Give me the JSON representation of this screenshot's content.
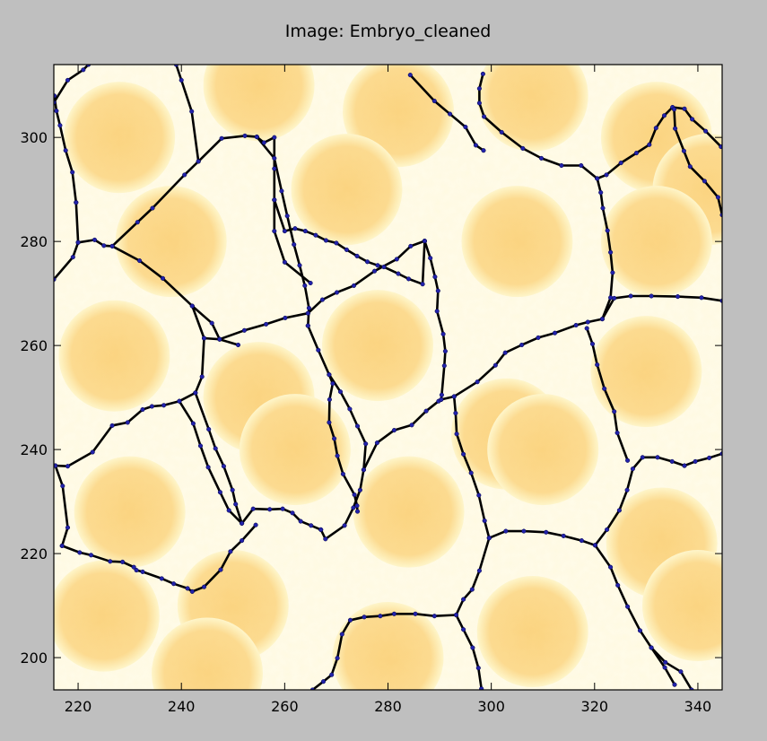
{
  "figure": {
    "title": "Image: Embryo_cleaned"
  },
  "chart_data": {
    "type": "image",
    "title": "Image: Embryo_cleaned",
    "xlabel": "",
    "ylabel": "",
    "xlim": [
      215.3,
      344.7
    ],
    "ylim": [
      193.8,
      314.0
    ],
    "xticks": [
      220,
      240,
      260,
      280,
      300,
      320,
      340
    ],
    "yticks": [
      200,
      220,
      240,
      260,
      280,
      300
    ],
    "x_tick_labels": [
      "220",
      "240",
      "260",
      "280",
      "300",
      "320",
      "340"
    ],
    "y_tick_labels": [
      "200",
      "220",
      "240",
      "260",
      "280",
      "300"
    ],
    "grid": false,
    "colors": {
      "background": "#bfbfbf",
      "cell_fill": "#fdd68a",
      "cell_edge_glow": "#fffef0",
      "membrane": "#000000",
      "vertex_marker": "#2222aa"
    },
    "membrane_segments": [
      [
        [
          215.3,
          306.7
        ],
        [
          218,
          311
        ],
        [
          221,
          313
        ],
        [
          222,
          314
        ]
      ],
      [
        [
          215.3,
          272.7
        ],
        [
          219,
          277
        ],
        [
          220,
          279.8
        ]
      ],
      [
        [
          219.6,
          287.5
        ],
        [
          218.9,
          293.3
        ],
        [
          217.6,
          297.5
        ],
        [
          216.5,
          302.3
        ],
        [
          215.8,
          305.1
        ],
        [
          215.4,
          308
        ]
      ],
      [
        [
          220,
          279.8
        ],
        [
          223.2,
          280.3
        ],
        [
          225,
          279.2
        ],
        [
          226.6,
          279.1
        ],
        [
          231.5,
          283.7
        ],
        [
          234.4,
          286.4
        ],
        [
          240.6,
          292.8
        ],
        [
          243.3,
          295.4
        ],
        [
          247.8,
          299.8
        ],
        [
          252.3,
          300.3
        ],
        [
          254.6,
          300.1
        ]
      ],
      [
        [
          219.6,
          287.5
        ],
        [
          220,
          279.8
        ]
      ],
      [
        [
          226.6,
          279.1
        ],
        [
          231.9,
          276.3
        ],
        [
          236.4,
          272.9
        ],
        [
          242.1,
          267.6
        ],
        [
          245.9,
          264.3
        ],
        [
          247.4,
          261.2
        ],
        [
          251,
          260.1
        ]
      ],
      [
        [
          242.1,
          267.6
        ],
        [
          244.4,
          261.4
        ],
        [
          247.4,
          261.2
        ]
      ],
      [
        [
          243.3,
          295.4
        ],
        [
          242,
          305
        ],
        [
          240,
          311
        ],
        [
          239,
          314
        ]
      ],
      [
        [
          254.6,
          300.1
        ],
        [
          256,
          299
        ],
        [
          258,
          300
        ],
        [
          258,
          294
        ],
        [
          258,
          288
        ],
        [
          258,
          282
        ],
        [
          260,
          276
        ],
        [
          265,
          272
        ]
      ],
      [
        [
          244.4,
          261.4
        ],
        [
          244,
          254
        ],
        [
          242.7,
          250.9
        ],
        [
          239.6,
          249.3
        ],
        [
          236.6,
          248.5
        ],
        [
          234.3,
          248.3
        ],
        [
          232.5,
          247.7
        ],
        [
          229.6,
          245.2
        ],
        [
          226.6,
          244.6
        ],
        [
          222.8,
          239.5
        ],
        [
          218,
          236.8
        ],
        [
          215.6,
          236.9
        ]
      ],
      [
        [
          216.9,
          221.5
        ],
        [
          218,
          225
        ],
        [
          217,
          233
        ],
        [
          215.6,
          236.9
        ]
      ],
      [
        [
          216.9,
          221.5
        ],
        [
          220.3,
          220.2
        ],
        [
          222.5,
          219.7
        ],
        [
          226.2,
          218.5
        ],
        [
          228.6,
          218.4
        ],
        [
          230.8,
          217.4
        ],
        [
          231.3,
          216.8
        ],
        [
          232.5,
          216.5
        ],
        [
          236.2,
          215.2
        ],
        [
          238.5,
          214.2
        ],
        [
          241.2,
          213.3
        ],
        [
          242.1,
          212.7
        ],
        [
          244.4,
          213.6
        ],
        [
          247.6,
          216.9
        ],
        [
          249.5,
          220.4
        ],
        [
          251.7,
          222.5
        ],
        [
          254.4,
          225.5
        ]
      ],
      [
        [
          239.6,
          249.3
        ],
        [
          242.3,
          245
        ],
        [
          243.7,
          240.7
        ],
        [
          245.2,
          236.6
        ],
        [
          247.5,
          231.8
        ],
        [
          249.2,
          228.3
        ],
        [
          251.7,
          225.8
        ],
        [
          253.9,
          228.6
        ],
        [
          257.1,
          228.5
        ],
        [
          259.6,
          228.6
        ],
        [
          261.5,
          227.8
        ],
        [
          263.1,
          226.2
        ],
        [
          265.1,
          225.4
        ],
        [
          267,
          224.6
        ]
      ],
      [
        [
          251.7,
          225.8
        ],
        [
          250.5,
          229.5
        ],
        [
          249.9,
          232.2
        ],
        [
          248.2,
          236.8
        ],
        [
          246.6,
          240.2
        ],
        [
          245.3,
          243.9
        ],
        [
          242.7,
          250.9
        ]
      ],
      [
        [
          254.6,
          300.1
        ],
        [
          258,
          296
        ],
        [
          259.4,
          289.7
        ],
        [
          260.5,
          284.9
        ],
        [
          261.8,
          279.4
        ],
        [
          262.9,
          275.4
        ],
        [
          263.9,
          271.5
        ],
        [
          264.7,
          267.2
        ],
        [
          264.5,
          263.8
        ]
      ],
      [
        [
          247.4,
          261.2
        ],
        [
          252.2,
          262.9
        ],
        [
          256.4,
          264.1
        ],
        [
          260.1,
          265.3
        ],
        [
          264.5,
          266.2
        ]
      ],
      [
        [
          264.5,
          266.2
        ],
        [
          267.3,
          268.8
        ],
        [
          270.1,
          270.2
        ],
        [
          273.4,
          271.5
        ],
        [
          277.4,
          274.3
        ],
        [
          281.7,
          276.6
        ],
        [
          284.4,
          279.1
        ],
        [
          287.1,
          280.1
        ]
      ],
      [
        [
          264.5,
          263.8
        ],
        [
          266.5,
          259.1
        ],
        [
          268.6,
          254.4
        ],
        [
          270.8,
          251.1
        ],
        [
          272.6,
          247.8
        ],
        [
          274.1,
          244.5
        ],
        [
          275.7,
          241.1
        ],
        [
          275.3,
          236.1
        ],
        [
          274.6,
          232.2
        ],
        [
          273.3,
          228.8
        ],
        [
          271.6,
          225.4
        ],
        [
          267.9,
          222.8
        ],
        [
          267,
          224.6
        ]
      ],
      [
        [
          268.6,
          254.4
        ],
        [
          269.3,
          252.7
        ],
        [
          268.7,
          249.6
        ],
        [
          268.6,
          245.2
        ],
        [
          269.6,
          242.1
        ],
        [
          270.2,
          238.8
        ],
        [
          271.3,
          235.3
        ],
        [
          273.5,
          231.3
        ],
        [
          274,
          229.2
        ],
        [
          274.1,
          228.1
        ]
      ],
      [
        [
          258,
          288
        ],
        [
          260,
          282
        ],
        [
          262,
          282.5
        ],
        [
          264,
          282
        ],
        [
          266,
          281.2
        ],
        [
          268,
          280.2
        ],
        [
          270,
          279.7
        ],
        [
          272,
          278.4
        ],
        [
          274,
          277.2
        ],
        [
          276,
          276.1
        ],
        [
          278,
          275.4
        ],
        [
          279.2,
          275.1
        ],
        [
          282,
          273.8
        ],
        [
          284,
          272.8
        ],
        [
          286.7,
          271.8
        ],
        [
          287.1,
          280.1
        ]
      ],
      [
        [
          287.1,
          280.1
        ],
        [
          288.2,
          276.8
        ],
        [
          289.1,
          273.2
        ],
        [
          289.7,
          270.5
        ],
        [
          289.5,
          266.6
        ],
        [
          290.7,
          262.2
        ],
        [
          291.1,
          258.9
        ],
        [
          290.9,
          256.1
        ],
        [
          290.4,
          250.5
        ],
        [
          290.3,
          249.6
        ]
      ],
      [
        [
          275.3,
          236.1
        ],
        [
          277.9,
          241.3
        ],
        [
          281.2,
          243.7
        ],
        [
          284.6,
          244.7
        ],
        [
          287.4,
          247.4
        ],
        [
          289.8,
          249.3
        ],
        [
          290.3,
          249.6
        ],
        [
          292.8,
          250.2
        ]
      ],
      [
        [
          284.3,
          312
        ],
        [
          289,
          307
        ],
        [
          292,
          304.5
        ],
        [
          295,
          302
        ],
        [
          297,
          298.5
        ],
        [
          298.5,
          297.5
        ]
      ],
      [
        [
          292.8,
          250.2
        ],
        [
          293.1,
          247
        ],
        [
          293.3,
          243
        ],
        [
          294.6,
          239.1
        ],
        [
          296.1,
          235.5
        ],
        [
          297.6,
          231.2
        ],
        [
          298.7,
          226.3
        ],
        [
          299.6,
          223
        ]
      ],
      [
        [
          299.6,
          223
        ],
        [
          302.8,
          224.3
        ],
        [
          306.3,
          224.3
        ],
        [
          310.6,
          224.1
        ],
        [
          314,
          223.4
        ],
        [
          317.5,
          222.5
        ],
        [
          320.1,
          221.6
        ]
      ],
      [
        [
          299.6,
          223
        ],
        [
          297.7,
          216.7
        ],
        [
          296.3,
          213.1
        ],
        [
          294.6,
          211.2
        ],
        [
          293.2,
          208.2
        ],
        [
          289,
          208
        ],
        [
          285.3,
          208.4
        ],
        [
          281.2,
          208.4
        ],
        [
          278.5,
          208
        ],
        [
          275.4,
          207.8
        ],
        [
          272.7,
          207.2
        ],
        [
          271.1,
          204.5
        ],
        [
          270.2,
          199.9
        ],
        [
          269.1,
          196.7
        ],
        [
          267.5,
          195.4
        ],
        [
          265.4,
          193.8
        ]
      ],
      [
        [
          293.2,
          208.2
        ],
        [
          294.6,
          205.4
        ],
        [
          296.4,
          201.9
        ],
        [
          297.5,
          198
        ],
        [
          298.1,
          194
        ]
      ],
      [
        [
          292.8,
          250.2
        ],
        [
          297.3,
          253
        ],
        [
          300.8,
          256.2
        ],
        [
          302.7,
          258.6
        ],
        [
          305.9,
          260.1
        ],
        [
          309.1,
          261.5
        ],
        [
          312.3,
          262.4
        ],
        [
          316.4,
          263.9
        ],
        [
          318.7,
          264.5
        ],
        [
          321.5,
          265.1
        ],
        [
          323.8,
          269.1
        ],
        [
          327,
          269.5
        ],
        [
          331,
          269.5
        ],
        [
          336.1,
          269.4
        ],
        [
          340.7,
          269.2
        ],
        [
          344.7,
          268.6
        ]
      ],
      [
        [
          321.5,
          265.1
        ],
        [
          323.1,
          269.2
        ],
        [
          323.5,
          274
        ],
        [
          323.1,
          277.9
        ],
        [
          322.5,
          282.1
        ],
        [
          321.6,
          286.4
        ],
        [
          321.2,
          289.4
        ],
        [
          320.5,
          292.1
        ]
      ],
      [
        [
          320.5,
          292.1
        ],
        [
          322.3,
          292.8
        ],
        [
          325.1,
          295.1
        ],
        [
          328.1,
          297
        ],
        [
          330.6,
          298.6
        ],
        [
          331.9,
          301.8
        ],
        [
          333.5,
          304.2
        ],
        [
          335.1,
          305.8
        ],
        [
          337.4,
          305.5
        ],
        [
          338.9,
          303.5
        ],
        [
          341.5,
          301.2
        ],
        [
          344.5,
          298.2
        ]
      ],
      [
        [
          320.5,
          292.1
        ],
        [
          317.4,
          294.6
        ],
        [
          313.6,
          294.6
        ],
        [
          309.7,
          296
        ],
        [
          306.1,
          297.9
        ],
        [
          302,
          301
        ],
        [
          298.6,
          304
        ],
        [
          297.7,
          306.6
        ],
        [
          297.7,
          309.4
        ],
        [
          298.4,
          312.2
        ]
      ],
      [
        [
          320.1,
          221.6
        ],
        [
          322.4,
          224.6
        ],
        [
          324.8,
          228.3
        ],
        [
          326.3,
          232.2
        ],
        [
          327.4,
          236.3
        ],
        [
          329.3,
          238.5
        ],
        [
          332.2,
          238.5
        ],
        [
          335,
          237.7
        ],
        [
          337.4,
          236.9
        ]
      ],
      [
        [
          320.1,
          221.6
        ],
        [
          323.1,
          217.4
        ],
        [
          324.5,
          213.9
        ],
        [
          326.4,
          209.8
        ],
        [
          328.8,
          205.2
        ],
        [
          331,
          201.9
        ],
        [
          333.7,
          199.1
        ],
        [
          336.7,
          197.3
        ],
        [
          338.8,
          193.8
        ]
      ],
      [
        [
          331,
          201.9
        ],
        [
          333.6,
          198.1
        ],
        [
          335.5,
          194.8
        ]
      ],
      [
        [
          337.4,
          236.9
        ],
        [
          339.5,
          237.7
        ],
        [
          342.2,
          238.4
        ],
        [
          344.7,
          239.2
        ]
      ],
      [
        [
          326.4,
          237.9
        ],
        [
          324.4,
          243.2
        ],
        [
          323.8,
          247.3
        ],
        [
          321.9,
          251.7
        ],
        [
          320.5,
          256.3
        ],
        [
          319.6,
          260.3
        ],
        [
          318.5,
          263.3
        ]
      ],
      [
        [
          344.7,
          285.1
        ],
        [
          343.9,
          288.5
        ],
        [
          341.3,
          291.6
        ],
        [
          338.5,
          294.4
        ],
        [
          337.3,
          297.4
        ],
        [
          335.6,
          301.7
        ],
        [
          335.4,
          305.4
        ]
      ]
    ]
  }
}
